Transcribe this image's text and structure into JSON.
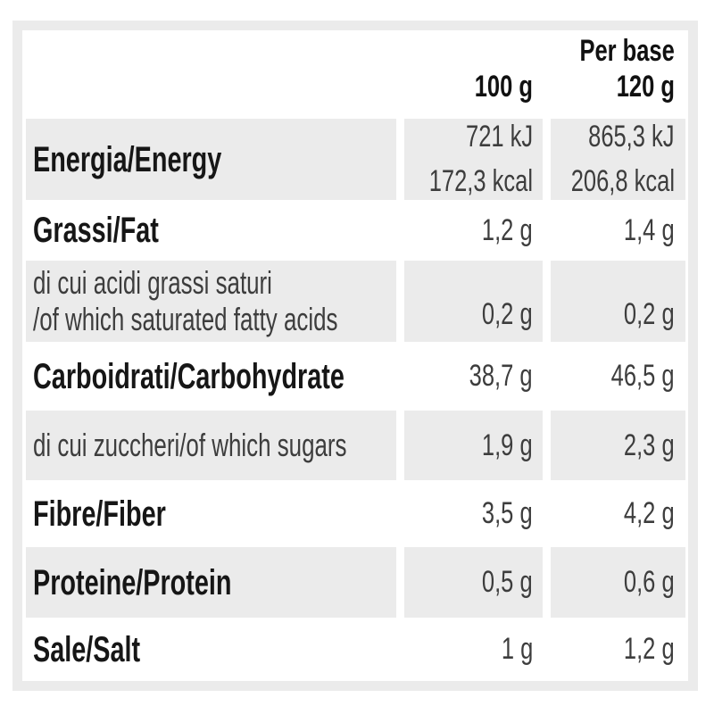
{
  "table": {
    "title": "nutrition-facts-table",
    "header": {
      "col_100g": "100 g",
      "col_base_line1": "Per base",
      "col_base_line2": "120 g"
    },
    "rows": [
      {
        "label": "Energia/Energy",
        "v100_kj": "721 kJ",
        "v100_kcal": "172,3 kcal",
        "vbase_kj": "865,3 kJ",
        "vbase_kcal": "206,8 kcal"
      },
      {
        "label": "Grassi/Fat",
        "v100": "1,2 g",
        "vbase": "1,4 g"
      },
      {
        "label_it": "di cui acidi grassi saturi",
        "label_en": "/of which saturated fatty acids",
        "v100": "0,2 g",
        "vbase": "0,2 g"
      },
      {
        "label": "Carboidrati/Carbohydrate",
        "v100": "38,7 g",
        "vbase": "46,5 g"
      },
      {
        "label": "di cui zuccheri/of which sugars",
        "v100": "1,9 g",
        "vbase": "2,3 g"
      },
      {
        "label": "Fibre/Fiber",
        "v100": "3,5 g",
        "vbase": "4,2 g"
      },
      {
        "label": "Proteine/Protein",
        "v100": "0,5 g",
        "vbase": "0,6 g"
      },
      {
        "label": "Sale/Salt",
        "v100": "1 g",
        "vbase": "1,2 g"
      }
    ],
    "colors": {
      "shade": "#ebebeb",
      "frame": "#ebebeb",
      "label_bold": "#161616",
      "text_regular": "#3d3d3d"
    }
  }
}
